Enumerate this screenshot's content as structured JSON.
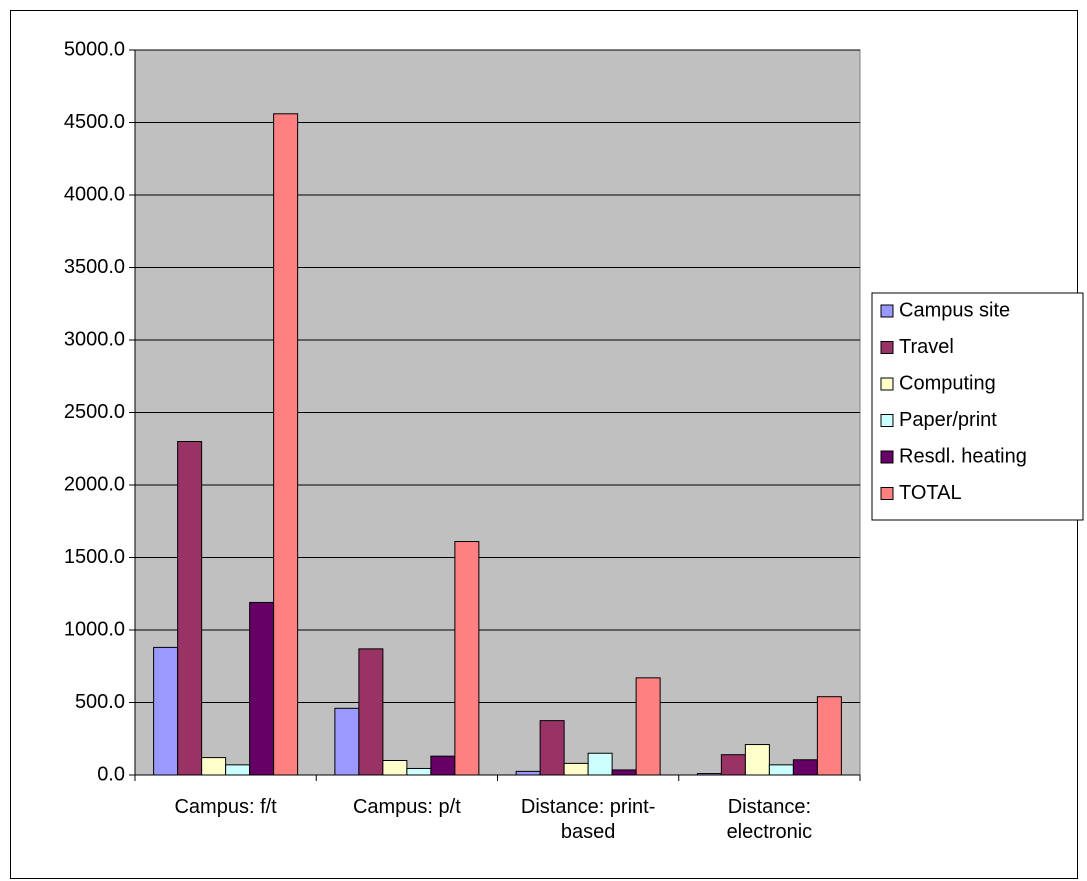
{
  "chart_data": {
    "type": "bar",
    "categories": [
      "Campus: f/t",
      "Campus: p/t",
      "Distance: print-based",
      "Distance: electronic"
    ],
    "series": [
      {
        "name": "Campus site",
        "color": "#9999ff",
        "values": [
          880,
          460,
          25,
          10
        ]
      },
      {
        "name": "Travel",
        "color": "#993366",
        "values": [
          2300,
          870,
          375,
          140
        ]
      },
      {
        "name": "Computing",
        "color": "#ffffcc",
        "values": [
          120,
          100,
          80,
          210
        ]
      },
      {
        "name": "Paper/print",
        "color": "#ccffff",
        "values": [
          70,
          45,
          150,
          70
        ]
      },
      {
        "name": "Resdl. heating",
        "color": "#660066",
        "values": [
          1190,
          130,
          35,
          105
        ]
      },
      {
        "name": "TOTAL",
        "color": "#ff8080",
        "values": [
          4560,
          1610,
          670,
          540
        ]
      }
    ],
    "ylim": [
      0,
      5000
    ],
    "yticks": [
      {
        "value": 0,
        "label": "0.0"
      },
      {
        "value": 500,
        "label": "500.0"
      },
      {
        "value": 1000,
        "label": "1000.0"
      },
      {
        "value": 1500,
        "label": "1500.0"
      },
      {
        "value": 2000,
        "label": "2000.0"
      },
      {
        "value": 2500,
        "label": "2500.0"
      },
      {
        "value": 3000,
        "label": "3000.0"
      },
      {
        "value": 3500,
        "label": "3500.0"
      },
      {
        "value": 4000,
        "label": "4000.0"
      },
      {
        "value": 4500,
        "label": "4500.0"
      },
      {
        "value": 5000,
        "label": "5000.0"
      }
    ],
    "grid": true,
    "legend": "right",
    "plot_background": "#c0c0c0"
  }
}
